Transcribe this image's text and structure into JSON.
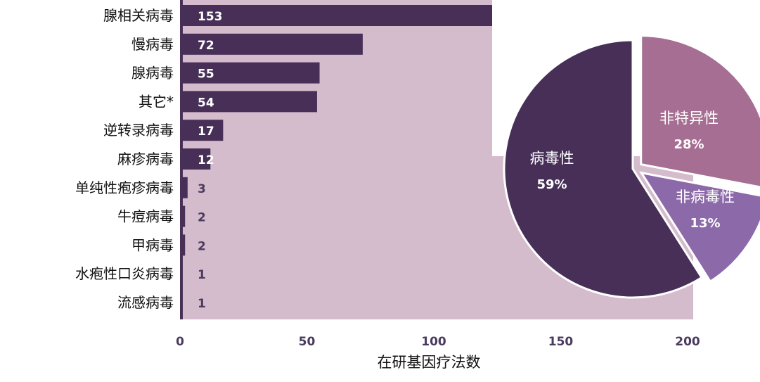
{
  "chart_data": [
    {
      "type": "bar",
      "orientation": "horizontal",
      "categories": [
        "腺相关病毒",
        "慢病毒",
        "腺病毒",
        "其它*",
        "逆转录病毒",
        "麻疹病毒",
        "单纯性疱疹病毒",
        "牛痘病毒",
        "甲病毒",
        "水疱性口炎病毒",
        "流感病毒"
      ],
      "values": [
        153,
        72,
        55,
        54,
        17,
        12,
        3,
        2,
        2,
        1,
        1
      ],
      "value_labels": [
        "153",
        "72",
        "55",
        "54",
        "17",
        "12",
        "3",
        "2",
        "2",
        "1",
        "1"
      ],
      "xlabel": "在研基因疗法数",
      "xlim": [
        0,
        200
      ],
      "xticks": [
        0,
        50,
        100,
        150,
        200
      ],
      "xtick_labels": [
        "0",
        "50",
        "100",
        "150",
        "200"
      ],
      "grid": false,
      "colors": {
        "bar": "#472f58",
        "plot_background": "#d5bccd",
        "value_on_bar": "#ffffff",
        "value_off_bar": "#4a3a5e"
      }
    },
    {
      "type": "pie",
      "slices": [
        {
          "label": "病毒性",
          "percent_label": "59%",
          "value": 59,
          "color": "#472f58",
          "exploded": false
        },
        {
          "label": "非特异性",
          "percent_label": "28%",
          "value": 28,
          "color": "#a66e92",
          "exploded": true
        },
        {
          "label": "非病毒性",
          "percent_label": "13%",
          "value": 13,
          "color": "#8c6aa9",
          "exploded": true
        }
      ]
    }
  ]
}
